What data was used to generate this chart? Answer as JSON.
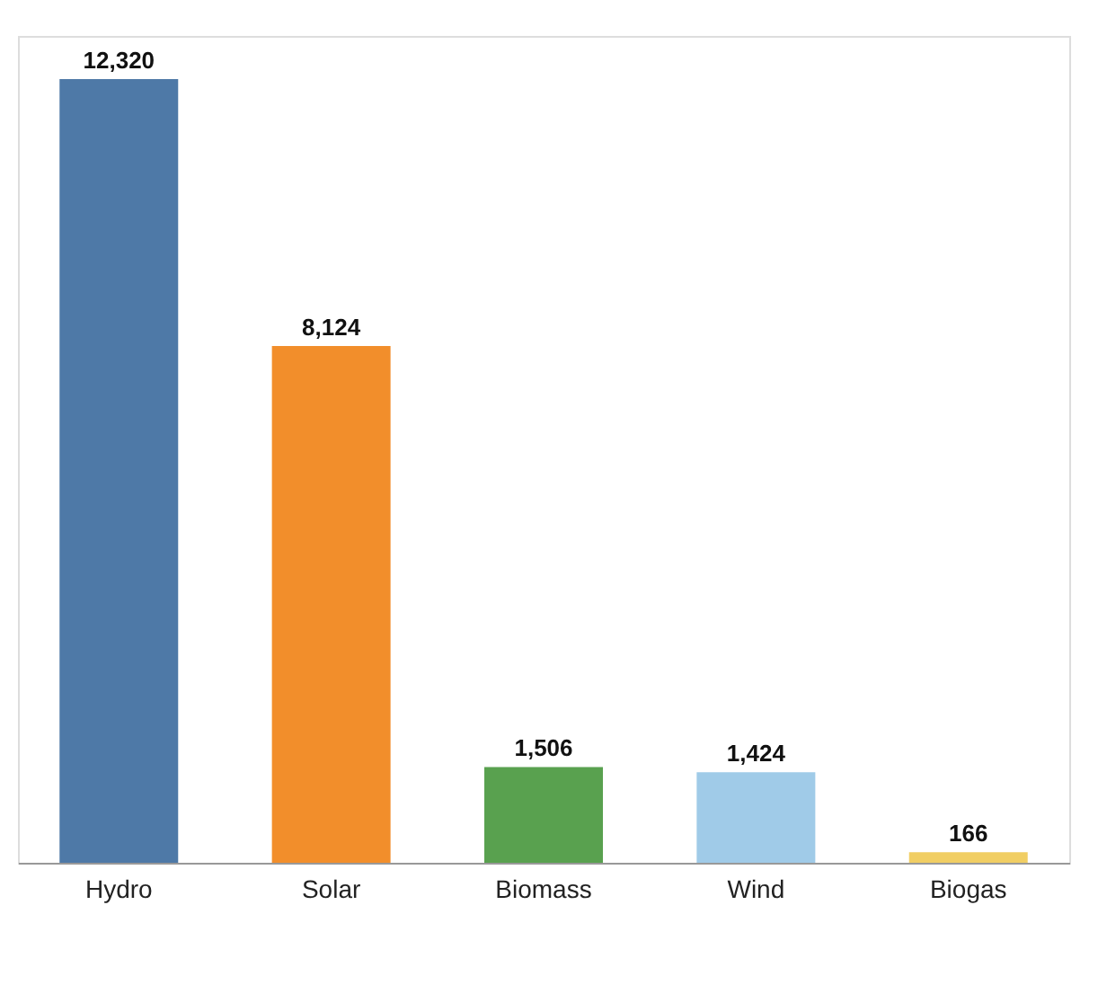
{
  "chart_data": {
    "type": "bar",
    "categories": [
      "Hydro",
      "Solar",
      "Biomass",
      "Wind",
      "Biogas"
    ],
    "values": [
      12320,
      8124,
      1506,
      1424,
      166
    ],
    "colors": [
      "#4e79a7",
      "#f28e2b",
      "#59a14f",
      "#a0cbe8",
      "#f1ce63"
    ],
    "value_labels": [
      "12,320",
      "8,124",
      "1,506",
      "1,424",
      "166"
    ],
    "grid": false,
    "legend": false
  }
}
